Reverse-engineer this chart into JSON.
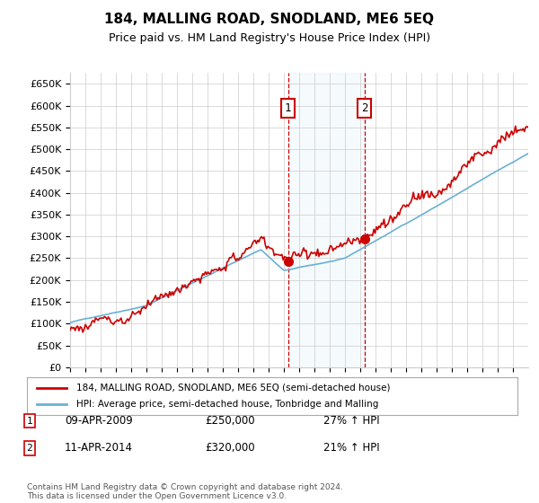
{
  "title": "184, MALLING ROAD, SNODLAND, ME6 5EQ",
  "subtitle": "Price paid vs. HM Land Registry's House Price Index (HPI)",
  "ylabel_ticks": [
    "£0",
    "£50K",
    "£100K",
    "£150K",
    "£200K",
    "£250K",
    "£300K",
    "£350K",
    "£400K",
    "£450K",
    "£500K",
    "£550K",
    "£600K",
    "£650K"
  ],
  "ytick_vals": [
    0,
    50000,
    100000,
    150000,
    200000,
    250000,
    300000,
    350000,
    400000,
    450000,
    500000,
    550000,
    600000,
    650000
  ],
  "ylim": [
    0,
    675000
  ],
  "xlim_start": 1995.0,
  "xlim_end": 2025.0,
  "transaction1": {
    "date": 2009.27,
    "price": 250000,
    "label": "1",
    "pct": "27% ↑ HPI",
    "date_str": "09-APR-2009"
  },
  "transaction2": {
    "date": 2014.28,
    "price": 320000,
    "label": "2",
    "pct": "21% ↑ HPI",
    "date_str": "11-APR-2014"
  },
  "hpi_color": "#6ab0d4",
  "price_color": "#cc0000",
  "legend1": "184, MALLING ROAD, SNODLAND, ME6 5EQ (semi-detached house)",
  "legend2": "HPI: Average price, semi-detached house, Tonbridge and Malling",
  "footer": "Contains HM Land Registry data © Crown copyright and database right 2024.\nThis data is licensed under the Open Government Licence v3.0.",
  "table_rows": [
    {
      "num": "1",
      "date": "09-APR-2009",
      "price": "£250,000",
      "pct": "27% ↑ HPI"
    },
    {
      "num": "2",
      "date": "11-APR-2014",
      "price": "£320,000",
      "pct": "21% ↑ HPI"
    }
  ],
  "bg_color": "#ffffff",
  "grid_color": "#cccccc",
  "shade_color": "#d0e8f5"
}
